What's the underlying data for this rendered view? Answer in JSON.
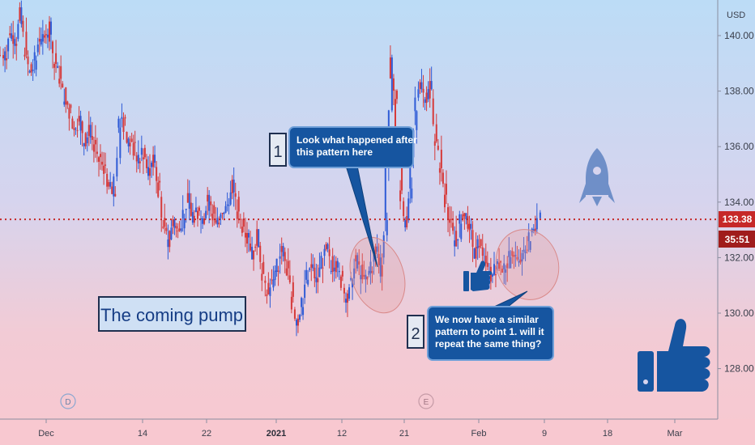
{
  "chart_data": {
    "type": "candlestick",
    "currency": "USD",
    "ylim": [
      126.0,
      141.0
    ],
    "y_ticks": [
      "140.00",
      "138.00",
      "136.00",
      "134.00",
      "132.00",
      "130.00",
      "128.00"
    ],
    "y_tick_values": [
      140,
      138,
      136,
      134,
      132,
      130,
      128
    ],
    "x_ticks": [
      "Dec",
      "14",
      "22",
      "2021",
      "12",
      "21",
      "Feb",
      "9",
      "18",
      "Mar"
    ],
    "current_price": 133.38,
    "current_price_label": "133.38",
    "countdown_label": "35:51",
    "event_markers": [
      "D",
      "E"
    ],
    "annotations": {
      "callout1_number": "1",
      "callout1_text_line1": "Look what happened after",
      "callout1_text_line2": "this pattern here",
      "callout2_number": "2",
      "callout2_text_line1": "We now have a similar",
      "callout2_text_line2": "pattern to point 1. will it",
      "callout2_text_line3": "repeat the same thing?",
      "headline": "The coming pump"
    },
    "price_path": [
      [
        139.3,
        1
      ],
      [
        140.2,
        2
      ],
      [
        139.8,
        3
      ],
      [
        140.8,
        4
      ],
      [
        139.5,
        5
      ],
      [
        138.6,
        7
      ],
      [
        138.9,
        8
      ],
      [
        140.0,
        9
      ],
      [
        139.9,
        10
      ],
      [
        140.4,
        11
      ],
      [
        139.0,
        12
      ],
      [
        138.6,
        13
      ],
      [
        137.7,
        14
      ],
      [
        137.4,
        15
      ],
      [
        136.6,
        16
      ],
      [
        137.0,
        17
      ],
      [
        136.2,
        19
      ],
      [
        136.6,
        20
      ],
      [
        136.1,
        21
      ],
      [
        135.4,
        22
      ],
      [
        135.2,
        23
      ],
      [
        134.5,
        24
      ],
      [
        134.0,
        25
      ],
      [
        136.5,
        26
      ],
      [
        137.2,
        27
      ],
      [
        135.9,
        28
      ],
      [
        136.3,
        29
      ],
      [
        135.4,
        30
      ],
      [
        135.8,
        31
      ],
      [
        135.1,
        32
      ],
      [
        135.5,
        34
      ],
      [
        134.6,
        35
      ],
      [
        133.0,
        36
      ],
      [
        132.5,
        37
      ],
      [
        133.4,
        38
      ],
      [
        132.9,
        39
      ],
      [
        133.6,
        40
      ],
      [
        134.1,
        41
      ],
      [
        133.2,
        42
      ],
      [
        133.8,
        43
      ],
      [
        133.4,
        44
      ],
      [
        134.3,
        45
      ],
      [
        133.6,
        46
      ],
      [
        133.2,
        48
      ],
      [
        133.5,
        49
      ],
      [
        133.9,
        50
      ],
      [
        134.6,
        51
      ],
      [
        133.7,
        52
      ],
      [
        133.3,
        53
      ],
      [
        133.0,
        54
      ],
      [
        132.1,
        56
      ],
      [
        132.8,
        57
      ],
      [
        131.6,
        58
      ],
      [
        130.6,
        59
      ],
      [
        131.0,
        60
      ],
      [
        131.6,
        61
      ],
      [
        132.3,
        62
      ],
      [
        131.5,
        63
      ],
      [
        130.6,
        64
      ],
      [
        129.7,
        65
      ],
      [
        130.4,
        66
      ],
      [
        131.2,
        67
      ],
      [
        131.7,
        68
      ],
      [
        131.0,
        69
      ],
      [
        131.8,
        70
      ],
      [
        132.3,
        71
      ],
      [
        131.5,
        72
      ],
      [
        132.1,
        73
      ],
      [
        131.2,
        74
      ],
      [
        130.6,
        75
      ],
      [
        131.0,
        76
      ],
      [
        131.9,
        77
      ],
      [
        131.4,
        78
      ],
      [
        131.1,
        79
      ],
      [
        131.6,
        80
      ],
      [
        132.4,
        81
      ],
      [
        131.5,
        82
      ],
      [
        133.5,
        83
      ],
      [
        139.0,
        84
      ],
      [
        137.6,
        85
      ],
      [
        134.3,
        86
      ],
      [
        133.2,
        87
      ],
      [
        134.5,
        88
      ],
      [
        137.2,
        89
      ],
      [
        138.5,
        90
      ],
      [
        137.8,
        91
      ],
      [
        138.3,
        92
      ],
      [
        136.3,
        93
      ],
      [
        135.4,
        94
      ],
      [
        134.3,
        95
      ],
      [
        133.4,
        96
      ],
      [
        132.4,
        97
      ],
      [
        133.1,
        98
      ],
      [
        133.6,
        99
      ],
      [
        133.0,
        100
      ],
      [
        132.0,
        101
      ],
      [
        132.6,
        102
      ],
      [
        131.9,
        103
      ],
      [
        131.3,
        104
      ],
      [
        131.6,
        105
      ],
      [
        132.0,
        106
      ],
      [
        131.5,
        107
      ],
      [
        131.8,
        108
      ],
      [
        132.2,
        109
      ],
      [
        131.7,
        110
      ],
      [
        132.1,
        111
      ],
      [
        132.6,
        112
      ],
      [
        133.1,
        113
      ],
      [
        133.8,
        114
      ]
    ]
  }
}
